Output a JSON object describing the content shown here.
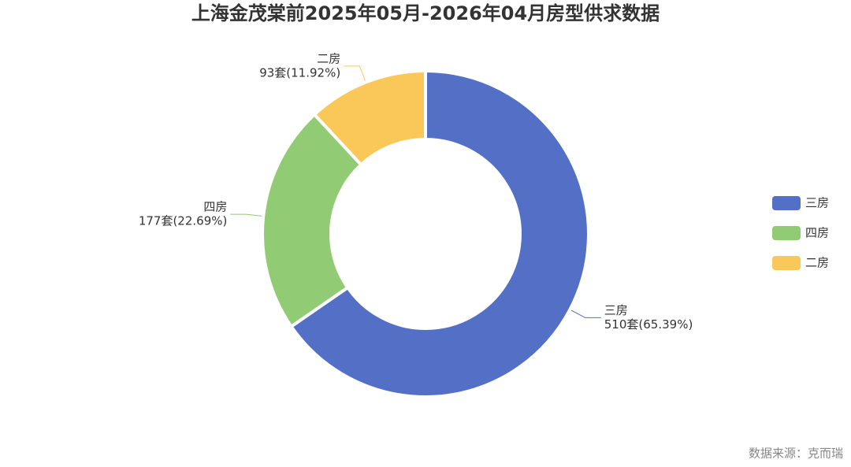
{
  "chart_data": {
    "type": "donut",
    "title": "上海金茂棠前2025年05月-2026年04月房型供求数据",
    "categories": [
      "三房",
      "四房",
      "二房"
    ],
    "values": [
      510,
      177,
      93
    ],
    "value_labels": [
      "510套(65.39%)",
      "177套(22.69%)",
      "93套(11.92%)"
    ],
    "colors": [
      "#5470c6",
      "#91cc75",
      "#fac858"
    ],
    "legend": "right",
    "source": "数据来源：克而瑞"
  }
}
